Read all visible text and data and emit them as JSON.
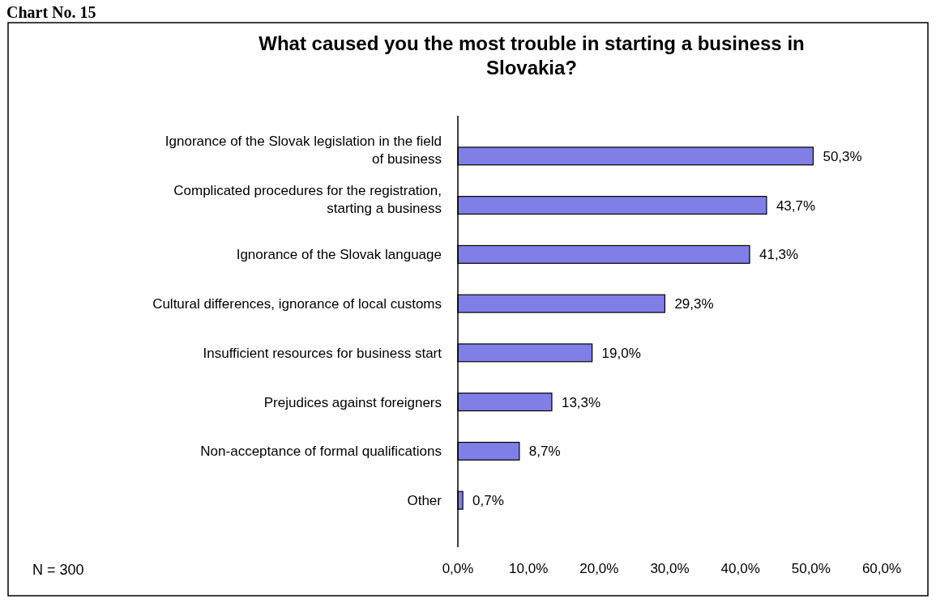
{
  "chart_data": {
    "type": "bar",
    "orientation": "horizontal",
    "title": "What caused you the most trouble in starting a business in Slovakia?",
    "categories": [
      "Ignorance of the Slovak legislation in the field of business",
      "Complicated procedures for the registration, starting a business",
      "Ignorance of the Slovak language",
      "Cultural differences, ignorance of local customs",
      "Insufficient resources for business start",
      "Prejudices against foreigners",
      "Non-acceptance of formal qualifications",
      "Other"
    ],
    "values": [
      50.3,
      43.7,
      41.3,
      29.3,
      19.0,
      13.3,
      8.7,
      0.7
    ],
    "value_labels": [
      "50,3%",
      "43,7%",
      "41,3%",
      "29,3%",
      "19,0%",
      "13,3%",
      "8,7%",
      "0,7%"
    ],
    "color": "#7f7fe6",
    "xlim": [
      0,
      60
    ],
    "xticks": [
      {
        "value": 0,
        "label": "0,0%"
      },
      {
        "value": 10,
        "label": "10,0%"
      },
      {
        "value": 20,
        "label": "20,0%"
      },
      {
        "value": 30,
        "label": "30,0%"
      },
      {
        "value": 40,
        "label": "40,0%"
      },
      {
        "value": 50,
        "label": "50,0%"
      },
      {
        "value": 60,
        "label": "60,0%"
      }
    ],
    "grid": false,
    "annotations": [
      "Chart No. 15",
      "N = 300"
    ]
  }
}
